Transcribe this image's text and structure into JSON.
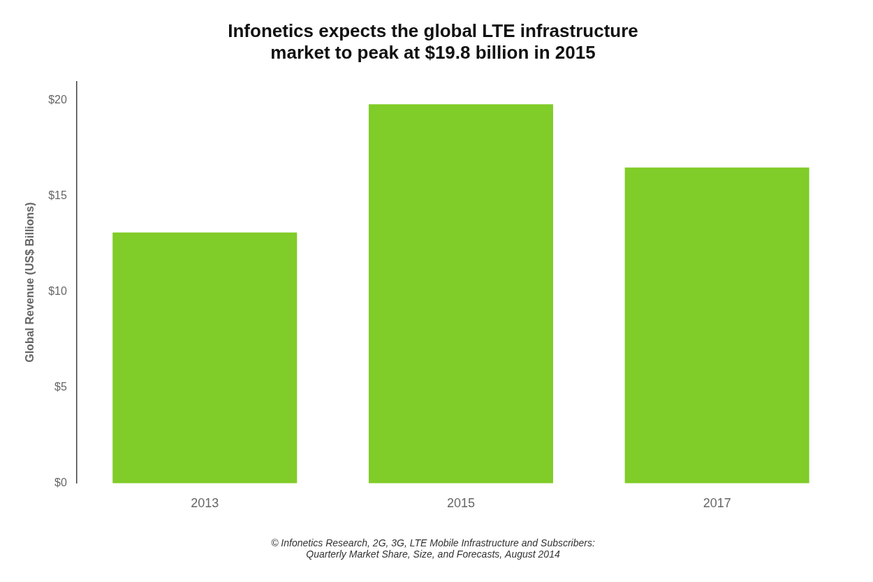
{
  "chart_data": {
    "type": "bar",
    "title": "Infonetics expects the global LTE infrastructure\nmarket to peak at $19.8 billion in 2015",
    "categories": [
      "2013",
      "2015",
      "2017"
    ],
    "values": [
      13.1,
      19.8,
      16.5
    ],
    "color": "#80cc28",
    "ylabel": "Global Revenue (US$ Billions)",
    "ylim": [
      0,
      21
    ],
    "yticks": [
      {
        "value": 0,
        "label": "$0"
      },
      {
        "value": 5,
        "label": "$5"
      },
      {
        "value": 10,
        "label": "$10"
      },
      {
        "value": 15,
        "label": "$15"
      },
      {
        "value": 20,
        "label": "$20"
      }
    ],
    "grid": false,
    "footnote": "© Infonetics Research, 2G, 3G, LTE Mobile Infrastructure and Subscribers:\nQuarterly Market Share, Size, and Forecasts, August 2014"
  }
}
